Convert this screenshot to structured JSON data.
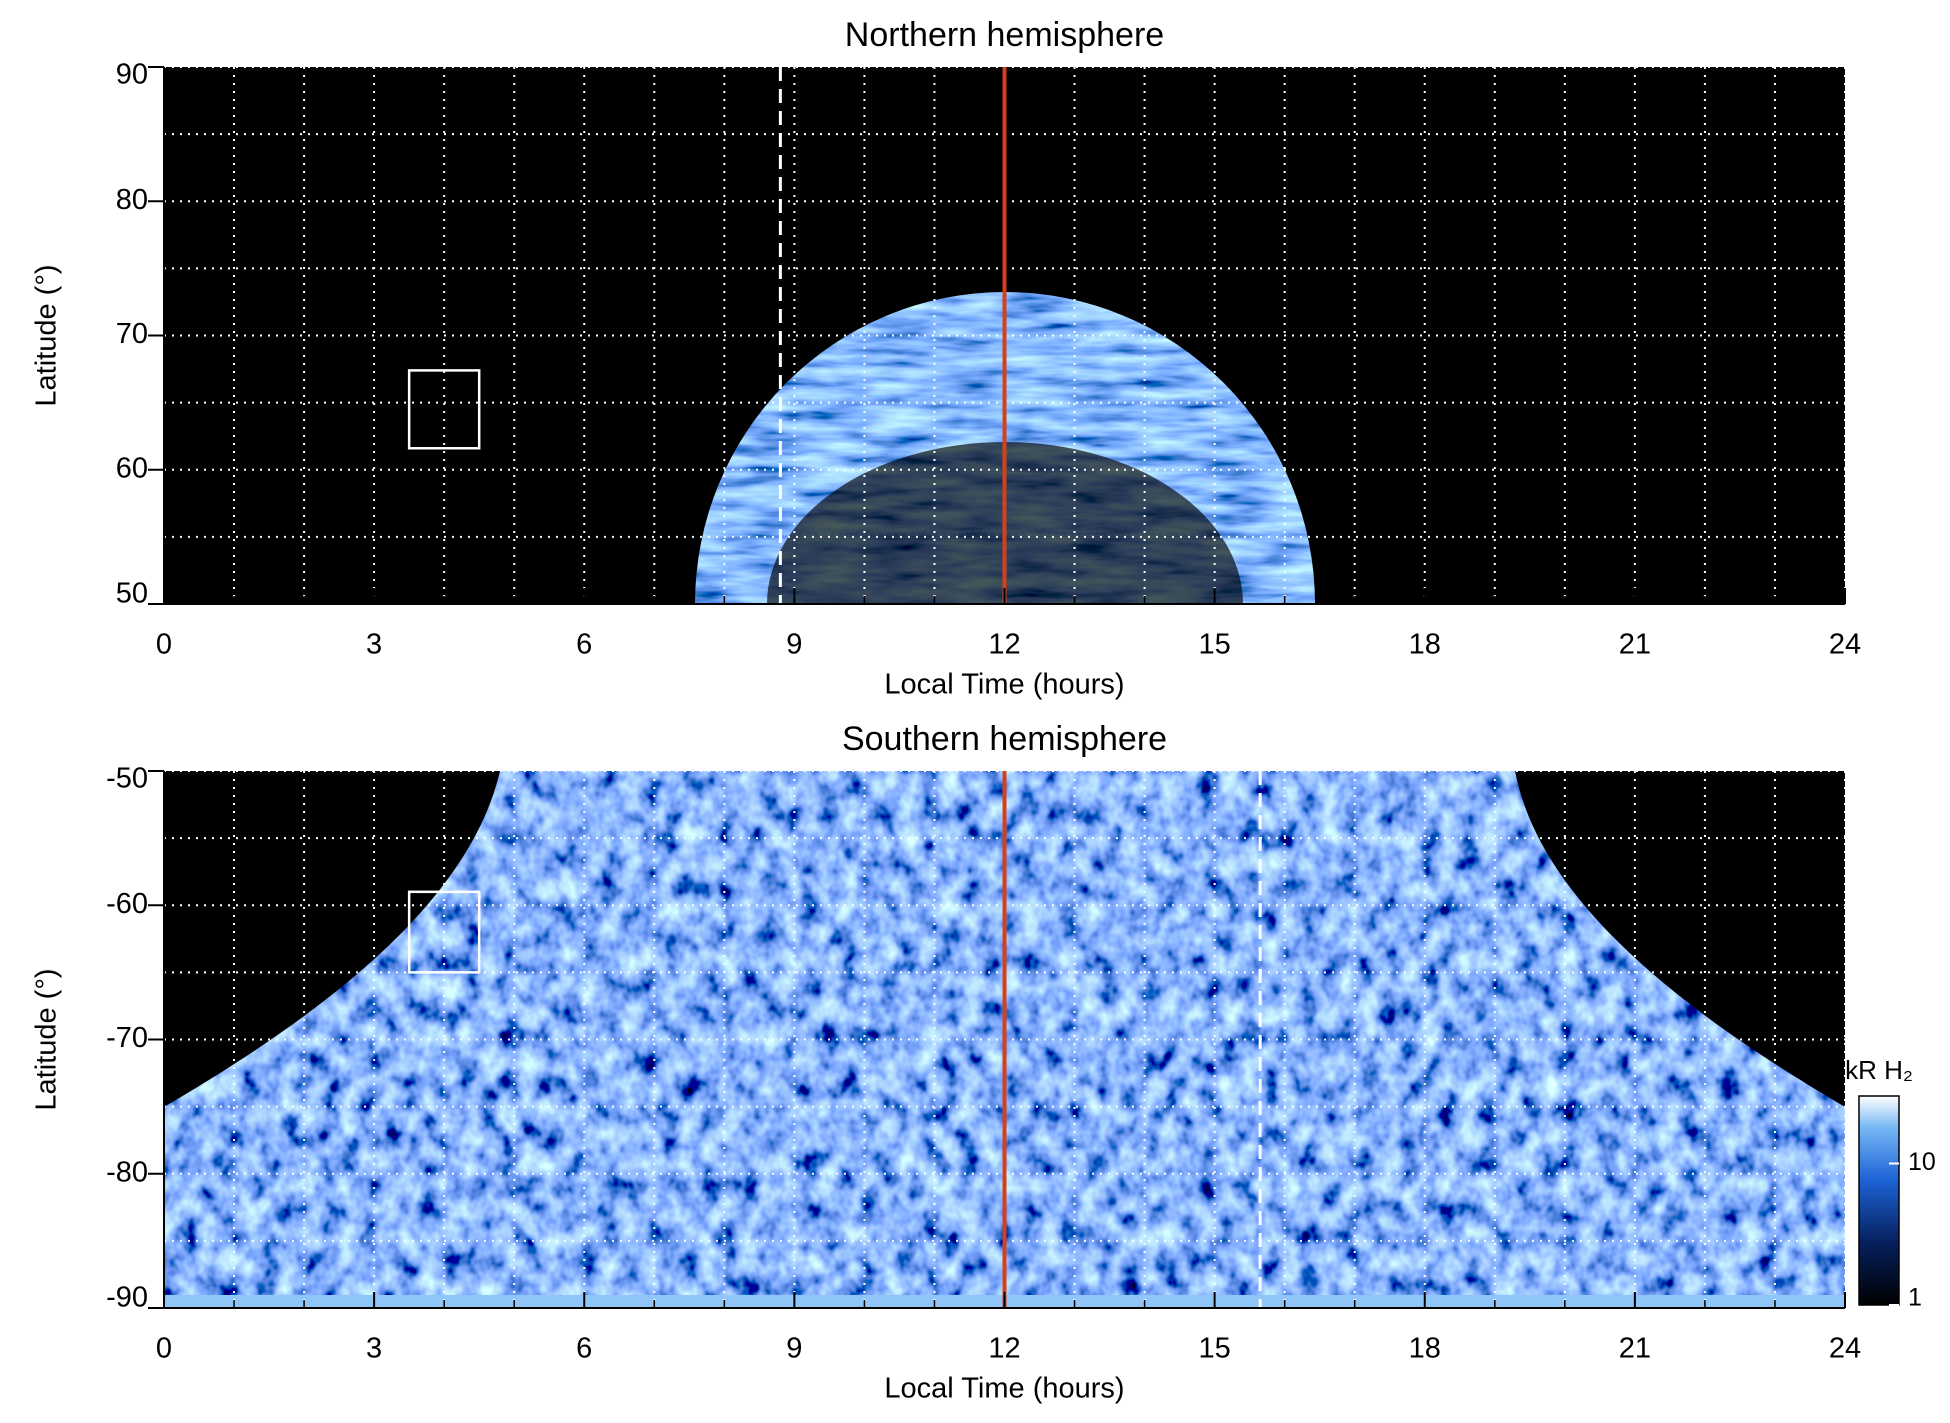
{
  "chart_data": [
    {
      "type": "heatmap",
      "title": "Northern hemisphere",
      "xlabel": "Local Time (hours)",
      "ylabel": "Latitude (°)",
      "xlim": [
        0,
        24
      ],
      "xticks": [
        0,
        3,
        6,
        9,
        12,
        15,
        18,
        21,
        24
      ],
      "xminorticks": [
        0,
        1,
        2,
        3,
        4,
        5,
        6,
        7,
        8,
        9,
        10,
        11,
        12,
        13,
        14,
        15,
        16,
        17,
        18,
        19,
        20,
        21,
        22,
        23,
        24
      ],
      "ylim": [
        50,
        90
      ],
      "yticks": [
        50,
        60,
        70,
        80,
        90
      ],
      "yminorticks": [
        50,
        55,
        60,
        65,
        70,
        75,
        80,
        85,
        90
      ],
      "grid": true,
      "noon_line": {
        "x": 12,
        "color": "#d4401c"
      },
      "dashed_line": {
        "x": 8.8,
        "color": "#ffffff"
      },
      "box": {
        "x": [
          3.5,
          4.5
        ],
        "y": [
          61.6,
          67.4
        ],
        "color": "#ffffff"
      }
    },
    {
      "type": "heatmap",
      "title": "Southern hemisphere",
      "xlabel": "Local Time (hours)",
      "ylabel": "Latitude (°)",
      "xlim": [
        0,
        24
      ],
      "xticks": [
        0,
        3,
        6,
        9,
        12,
        15,
        18,
        21,
        24
      ],
      "xminorticks": [
        0,
        1,
        2,
        3,
        4,
        5,
        6,
        7,
        8,
        9,
        10,
        11,
        12,
        13,
        14,
        15,
        16,
        17,
        18,
        19,
        20,
        21,
        22,
        23,
        24
      ],
      "ylim": [
        -90,
        -50
      ],
      "yticks": [
        -90,
        -80,
        -70,
        -60,
        -50
      ],
      "yminorticks": [
        -90,
        -85,
        -80,
        -75,
        -70,
        -65,
        -60,
        -55,
        -50
      ],
      "grid": true,
      "noon_line": {
        "x": 12,
        "color": "#d4401c"
      },
      "dashed_line": {
        "x": 15.65,
        "color": "#ffffff"
      },
      "box": {
        "x": [
          3.5,
          4.5
        ],
        "y": [
          -65,
          -59
        ],
        "color": "#ffffff"
      },
      "colorbar": {
        "label": "kR H₂",
        "lim": [
          1,
          30
        ],
        "ticks": [
          1,
          10
        ],
        "log": true
      }
    }
  ]
}
